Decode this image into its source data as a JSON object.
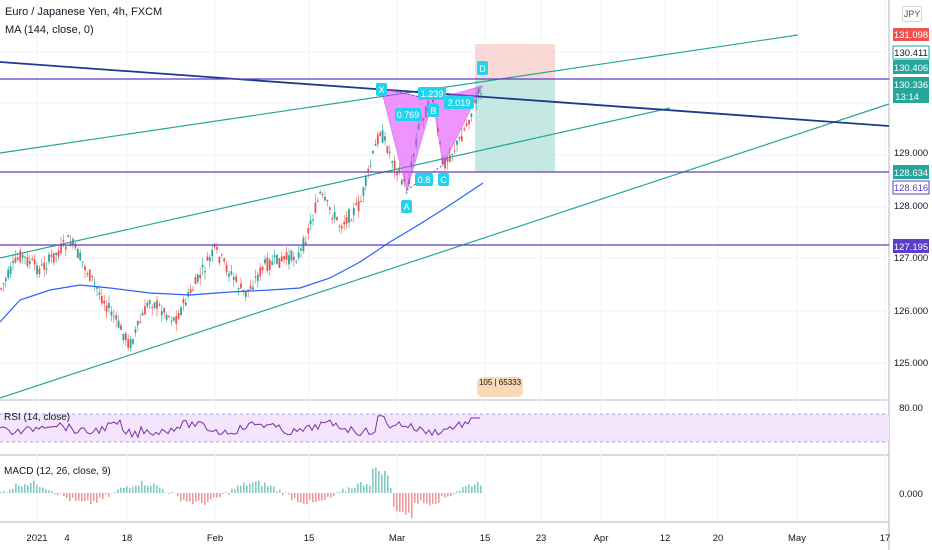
{
  "header": {
    "title": "Euro / Japanese Yen, 4h, FXCM",
    "ma_label": "MA (144, close, 0)",
    "currency_badge": "JPY"
  },
  "chart_data": {
    "type": "candlestick",
    "symbol": "Euro / Japanese Yen",
    "timeframe": "4h",
    "source": "FXCM",
    "price_axis": {
      "ticks": [
        "131.098",
        "130.411",
        "130.406",
        "130.336",
        "13:14",
        "129.000",
        "128.634",
        "128.616",
        "128.000",
        "127.195",
        "127.000",
        "126.000",
        "125.000"
      ],
      "range": [
        124.6,
        131.5
      ]
    },
    "time_axis": {
      "labels": [
        "2021",
        "4",
        "18",
        "Feb",
        "15",
        "Mar",
        "15",
        "23",
        "Apr",
        "12",
        "20",
        "May",
        "17"
      ]
    },
    "price_lines": [
      131.098,
      130.411,
      130.406,
      128.634,
      128.616,
      127.195
    ],
    "pattern_labels": [
      "X",
      "A",
      "B",
      "C",
      "D",
      "0.769",
      "0.8",
      "1.239",
      "2.019"
    ],
    "moving_average": {
      "label": "MA (144, close, 0)",
      "color": "#2962ff"
    },
    "rsi": {
      "label": "RSI (14, close)",
      "levels": [
        "80.00"
      ]
    },
    "macd": {
      "label": "MACD (12, 26, close, 9)",
      "levels": [
        "0.000"
      ]
    },
    "volume_label": "105 | 65333",
    "colors": {
      "up": "#26a69a",
      "down": "#ef5350",
      "pattern": "#e040fb",
      "trend": "#26a69a",
      "resistance": "#3f51b5",
      "stop_zone": "#f9cdc9",
      "target_zone": "#b7e4dc",
      "price_current": "#26a69a"
    }
  }
}
